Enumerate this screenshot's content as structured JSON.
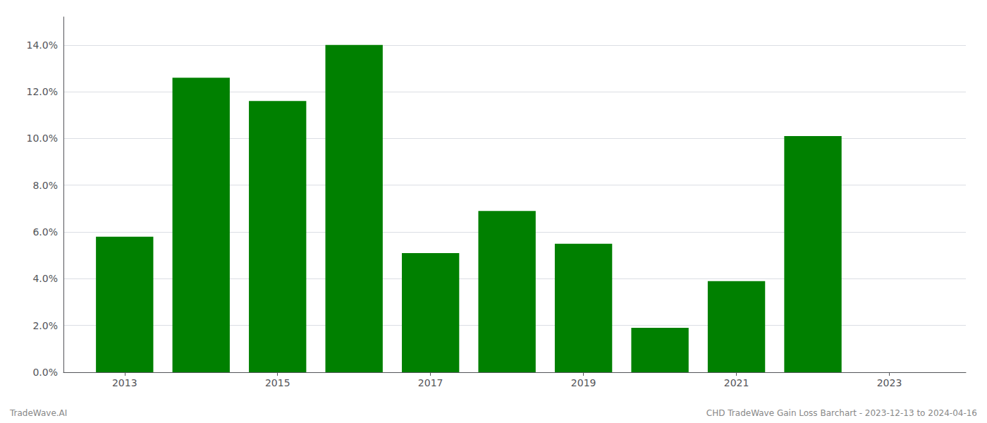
{
  "chart_data": {
    "type": "bar",
    "x": [
      2013,
      2014,
      2015,
      2016,
      2017,
      2018,
      2019,
      2020,
      2021,
      2022
    ],
    "values": [
      0.058,
      0.126,
      0.116,
      0.14,
      0.051,
      0.069,
      0.055,
      0.019,
      0.039,
      0.101
    ],
    "color": "#008000",
    "xlim": [
      2012.2,
      2024.0
    ],
    "xticks": [
      2013,
      2015,
      2017,
      2019,
      2021,
      2023
    ],
    "ylim": [
      0,
      0.152
    ],
    "yticks": [
      {
        "value": 0.0,
        "label": "0.0%"
      },
      {
        "value": 0.02,
        "label": "2.0%"
      },
      {
        "value": 0.04,
        "label": "4.0%"
      },
      {
        "value": 0.06,
        "label": "6.0%"
      },
      {
        "value": 0.08,
        "label": "8.0%"
      },
      {
        "value": 0.1,
        "label": "10.0%"
      },
      {
        "value": 0.12,
        "label": "12.0%"
      },
      {
        "value": 0.14,
        "label": "14.0%"
      }
    ],
    "grid": true,
    "annotations": [
      "TradeWave.AI",
      "CHD TradeWave Gain Loss Barchart - 2023-12-13 to 2024-04-16"
    ]
  }
}
